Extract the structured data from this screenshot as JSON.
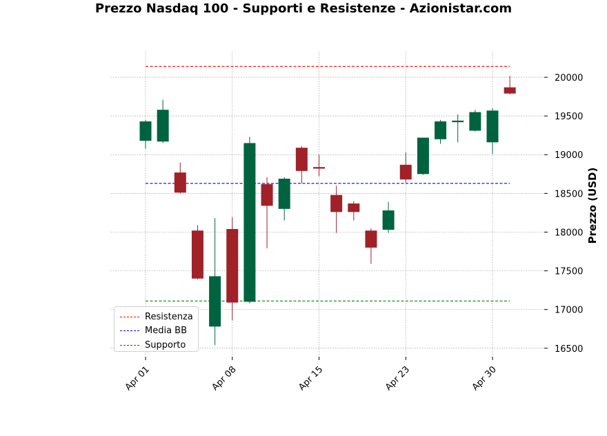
{
  "chart_data": {
    "type": "candlestick",
    "title": "Prezzo Nasdaq 100 - Supporti e Resistenze - Azionistar.com",
    "ylabel": "Prezzo (USD)",
    "ylim": [
      16400,
      20330
    ],
    "yticks": [
      16500,
      17000,
      17500,
      18000,
      18500,
      19000,
      19500,
      20000
    ],
    "xticks": [
      {
        "label": "Apr 01",
        "index": 0
      },
      {
        "label": "Apr 08",
        "index": 5
      },
      {
        "label": "Apr 15",
        "index": 10
      },
      {
        "label": "Apr 23",
        "index": 15
      },
      {
        "label": "Apr 30",
        "index": 20
      }
    ],
    "grid": true,
    "legend_position": "lower-left",
    "candles": [
      {
        "open": 19180,
        "high": 19450,
        "low": 19080,
        "close": 19430
      },
      {
        "open": 19170,
        "high": 19710,
        "low": 19150,
        "close": 19580
      },
      {
        "open": 18770,
        "high": 18900,
        "low": 18500,
        "close": 18510
      },
      {
        "open": 18020,
        "high": 18090,
        "low": 17390,
        "close": 17400
      },
      {
        "open": 16780,
        "high": 18180,
        "low": 16540,
        "close": 17430
      },
      {
        "open": 18040,
        "high": 18190,
        "low": 16860,
        "close": 17090
      },
      {
        "open": 17100,
        "high": 19230,
        "low": 17080,
        "close": 19150
      },
      {
        "open": 18620,
        "high": 18710,
        "low": 17790,
        "close": 18340
      },
      {
        "open": 18300,
        "high": 18710,
        "low": 18150,
        "close": 18690
      },
      {
        "open": 19090,
        "high": 19110,
        "low": 18630,
        "close": 18790
      },
      {
        "open": 18840,
        "high": 19000,
        "low": 18720,
        "close": 18820
      },
      {
        "open": 18480,
        "high": 18600,
        "low": 17990,
        "close": 18260
      },
      {
        "open": 18370,
        "high": 18400,
        "low": 18150,
        "close": 18260
      },
      {
        "open": 18020,
        "high": 18050,
        "low": 17590,
        "close": 17800
      },
      {
        "open": 18030,
        "high": 18390,
        "low": 17990,
        "close": 18280
      },
      {
        "open": 18870,
        "high": 19030,
        "low": 18640,
        "close": 18680
      },
      {
        "open": 18750,
        "high": 19220,
        "low": 18740,
        "close": 19220
      },
      {
        "open": 19200,
        "high": 19450,
        "low": 19140,
        "close": 19430
      },
      {
        "open": 19420,
        "high": 19520,
        "low": 19160,
        "close": 19440
      },
      {
        "open": 19310,
        "high": 19580,
        "low": 19300,
        "close": 19550
      },
      {
        "open": 19160,
        "high": 19600,
        "low": 19010,
        "close": 19570
      },
      {
        "open": 19870,
        "high": 20020,
        "low": 19780,
        "close": 19790
      }
    ],
    "levels": [
      {
        "name": "Resistenza",
        "value": 20140,
        "color": "#ff0000"
      },
      {
        "name": "Media BB",
        "value": 18630,
        "color": "#0000ff"
      },
      {
        "name": "Supporto",
        "value": 17110,
        "color": "#008000"
      }
    ],
    "colors": {
      "up": "#006340",
      "down": "#a02128",
      "grid": "#b0b0b0"
    }
  }
}
